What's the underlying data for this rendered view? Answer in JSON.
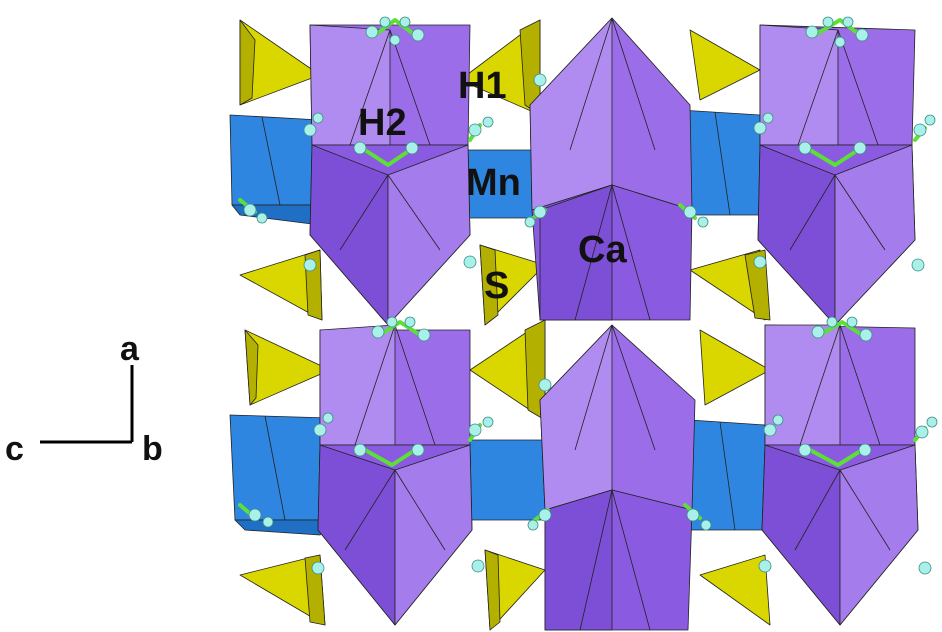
{
  "labels": {
    "h1": "H1",
    "h2": "H2",
    "mn": "Mn",
    "ca": "Ca",
    "s": "S"
  },
  "axes": {
    "a": "a",
    "b": "b",
    "c": "c"
  },
  "colors": {
    "ca_polyhedra": "#9b6de8",
    "ca_polyhedra_light": "#b08cf0",
    "ca_polyhedra_dark": "#7d4fd6",
    "mn_polyhedra": "#2f86e0",
    "s_tetrahedra": "#d9d600",
    "hydrogen_atoms": "#a8f0e8",
    "bonds": "#5ce038"
  }
}
